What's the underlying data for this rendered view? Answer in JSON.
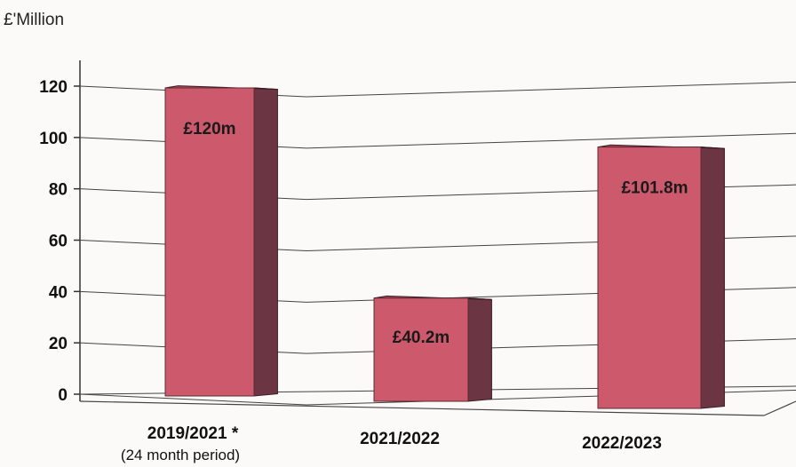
{
  "chart_data": {
    "type": "bar",
    "ylabel": "£'Million",
    "ylim": [
      0,
      120
    ],
    "yticks": [
      0,
      20,
      40,
      60,
      80,
      100,
      120
    ],
    "categories": [
      "2019/2021 *",
      "2021/2022",
      "2022/2023"
    ],
    "category_notes": [
      "(24 month period)",
      "",
      ""
    ],
    "values": [
      120,
      40.2,
      101.8
    ],
    "data_labels": [
      "£120m",
      "£40.2m",
      "£101.8m"
    ],
    "grid": true,
    "style": "3d-column",
    "colors": {
      "front": "#cc5a6c",
      "side": "#6b3543",
      "top": "#b84a5c"
    }
  }
}
